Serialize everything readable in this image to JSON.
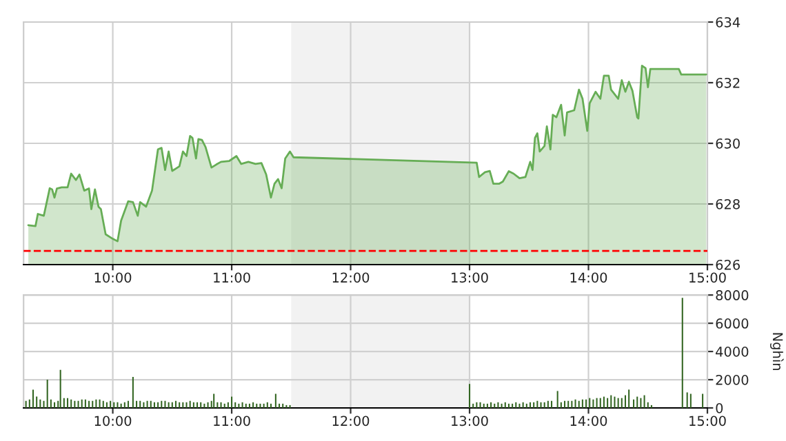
{
  "chart_data": [
    {
      "type": "area",
      "xlim": [
        9.25,
        15
      ],
      "ylim": [
        626,
        634
      ],
      "yticks": [
        626,
        628,
        630,
        632,
        634
      ],
      "xticks": [
        {
          "value": 10,
          "label": "10:00"
        },
        {
          "value": 11,
          "label": "11:00"
        },
        {
          "value": 12,
          "label": "12:00"
        },
        {
          "value": 13,
          "label": "13:00"
        },
        {
          "value": 14,
          "label": "14:00"
        },
        {
          "value": 15,
          "label": "15:00"
        }
      ],
      "grid": true,
      "legend": false,
      "ref_lines": [
        {
          "axis": "y",
          "value": 626.45,
          "color": "#ff0000",
          "line_style": "dashed"
        }
      ],
      "bands": [
        {
          "axis": "x",
          "from": 11.5,
          "to": 13,
          "color": "#f2f2f2"
        }
      ],
      "series": [
        {
          "color": "#66ad55",
          "x": [
            9.29,
            9.35,
            9.37,
            9.42,
            9.47,
            9.49,
            9.51,
            9.53,
            9.57,
            9.62,
            9.65,
            9.69,
            9.72,
            9.76,
            9.8,
            9.82,
            9.85,
            9.88,
            9.9,
            9.94,
            10.0,
            10.04,
            10.07,
            10.13,
            10.17,
            10.21,
            10.23,
            10.28,
            10.33,
            10.38,
            10.41,
            10.44,
            10.47,
            10.5,
            10.56,
            10.59,
            10.62,
            10.65,
            10.67,
            10.7,
            10.72,
            10.75,
            10.78,
            10.83,
            10.87,
            10.91,
            10.98,
            11.04,
            11.08,
            11.14,
            11.2,
            11.25,
            11.29,
            11.33,
            11.36,
            11.39,
            11.42,
            11.45,
            11.49,
            11.52,
            13.06,
            13.08,
            13.13,
            13.17,
            13.2,
            13.25,
            13.28,
            13.33,
            13.37,
            13.42,
            13.47,
            13.51,
            13.53,
            13.55,
            13.57,
            13.59,
            13.63,
            13.65,
            13.68,
            13.7,
            13.73,
            13.77,
            13.8,
            13.82,
            13.88,
            13.92,
            13.95,
            13.99,
            14.01,
            14.06,
            14.1,
            14.13,
            14.17,
            14.19,
            14.25,
            14.28,
            14.31,
            14.34,
            14.37,
            14.41,
            14.42,
            14.45,
            14.48,
            14.5,
            14.52,
            14.76,
            14.78,
            14.99
          ],
          "values": [
            627.3,
            627.27,
            627.67,
            627.61,
            628.52,
            628.48,
            628.21,
            628.51,
            628.55,
            628.55,
            629.0,
            628.79,
            628.97,
            628.44,
            628.51,
            627.83,
            628.48,
            627.91,
            627.83,
            627.0,
            626.85,
            626.77,
            627.45,
            628.09,
            628.06,
            627.61,
            628.06,
            627.91,
            628.44,
            629.8,
            629.85,
            629.12,
            629.73,
            629.09,
            629.24,
            629.73,
            629.58,
            630.24,
            630.18,
            629.5,
            630.14,
            630.11,
            629.88,
            629.2,
            629.3,
            629.39,
            629.42,
            629.58,
            629.32,
            629.39,
            629.32,
            629.35,
            628.97,
            628.21,
            628.67,
            628.82,
            628.52,
            629.5,
            629.73,
            629.54,
            629.36,
            628.89,
            629.05,
            629.09,
            628.67,
            628.67,
            628.74,
            629.08,
            629.0,
            628.85,
            628.89,
            629.39,
            629.12,
            630.18,
            630.33,
            629.73,
            629.91,
            630.56,
            629.8,
            630.94,
            630.86,
            631.27,
            630.26,
            631.02,
            631.09,
            631.77,
            631.47,
            630.41,
            631.32,
            631.7,
            631.47,
            632.23,
            632.23,
            631.77,
            631.47,
            632.08,
            631.7,
            632.03,
            631.73,
            630.86,
            630.82,
            632.56,
            632.48,
            631.85,
            632.45,
            632.45,
            632.27,
            632.27
          ]
        }
      ]
    },
    {
      "type": "bar",
      "xlim": [
        9.25,
        15
      ],
      "ylim": [
        0,
        8000
      ],
      "yticks": [
        0,
        2000,
        4000,
        6000,
        8000
      ],
      "ylabel": "Nghìn",
      "xticks": [
        {
          "value": 10,
          "label": "10:00"
        },
        {
          "value": 11,
          "label": "11:00"
        },
        {
          "value": 12,
          "label": "12:00"
        },
        {
          "value": 13,
          "label": "13:00"
        },
        {
          "value": 14,
          "label": "14:00"
        },
        {
          "value": 15,
          "label": "15:00"
        }
      ],
      "grid": true,
      "legend": false,
      "bands": [
        {
          "axis": "x",
          "from": 11.5,
          "to": 13,
          "color": "#f2f2f2"
        }
      ],
      "series": [
        {
          "color": "#336622",
          "x": [
            9.27,
            9.3,
            9.33,
            9.36,
            9.39,
            9.42,
            9.45,
            9.48,
            9.51,
            9.54,
            9.56,
            9.59,
            9.62,
            9.65,
            9.68,
            9.71,
            9.74,
            9.77,
            9.8,
            9.83,
            9.86,
            9.89,
            9.92,
            9.95,
            9.98,
            10.01,
            10.04,
            10.07,
            10.1,
            10.13,
            10.17,
            10.2,
            10.23,
            10.26,
            10.29,
            10.32,
            10.35,
            10.38,
            10.41,
            10.44,
            10.47,
            10.5,
            10.53,
            10.56,
            10.59,
            10.62,
            10.65,
            10.68,
            10.71,
            10.74,
            10.77,
            10.8,
            10.83,
            10.85,
            10.88,
            10.91,
            10.94,
            10.97,
            11.0,
            11.03,
            11.06,
            11.09,
            11.12,
            11.15,
            11.18,
            11.21,
            11.24,
            11.27,
            11.3,
            11.33,
            11.37,
            11.4,
            11.43,
            11.46,
            11.49,
            13.0,
            13.03,
            13.06,
            13.09,
            13.12,
            13.15,
            13.18,
            13.21,
            13.24,
            13.27,
            13.3,
            13.33,
            13.36,
            13.39,
            13.42,
            13.45,
            13.48,
            13.51,
            13.54,
            13.57,
            13.6,
            13.63,
            13.66,
            13.69,
            13.74,
            13.77,
            13.8,
            13.83,
            13.86,
            13.89,
            13.92,
            13.95,
            13.98,
            14.01,
            14.04,
            14.07,
            14.1,
            14.13,
            14.16,
            14.19,
            14.22,
            14.25,
            14.28,
            14.31,
            14.34,
            14.38,
            14.41,
            14.44,
            14.47,
            14.5,
            14.53,
            14.7,
            14.79,
            14.83,
            14.86,
            14.96
          ],
          "values": [
            500,
            600,
            1300,
            800,
            600,
            500,
            2000,
            600,
            400,
            500,
            2700,
            700,
            700,
            600,
            500,
            500,
            600,
            600,
            500,
            500,
            600,
            600,
            500,
            400,
            500,
            400,
            400,
            300,
            400,
            500,
            2200,
            500,
            500,
            400,
            500,
            500,
            400,
            400,
            500,
            500,
            400,
            400,
            500,
            400,
            400,
            400,
            500,
            400,
            400,
            400,
            300,
            400,
            500,
            1000,
            400,
            400,
            300,
            400,
            800,
            400,
            300,
            400,
            300,
            300,
            400,
            300,
            300,
            300,
            400,
            300,
            1000,
            300,
            300,
            200,
            200,
            1700,
            300,
            400,
            400,
            300,
            300,
            400,
            300,
            400,
            300,
            400,
            300,
            300,
            400,
            300,
            400,
            300,
            400,
            400,
            500,
            400,
            400,
            500,
            500,
            1200,
            400,
            500,
            500,
            500,
            600,
            500,
            600,
            600,
            700,
            600,
            700,
            700,
            800,
            700,
            900,
            800,
            700,
            700,
            900,
            1300,
            600,
            800,
            700,
            900,
            400,
            200,
            null,
            7800,
            1100,
            1000,
            1000
          ]
        }
      ]
    }
  ]
}
